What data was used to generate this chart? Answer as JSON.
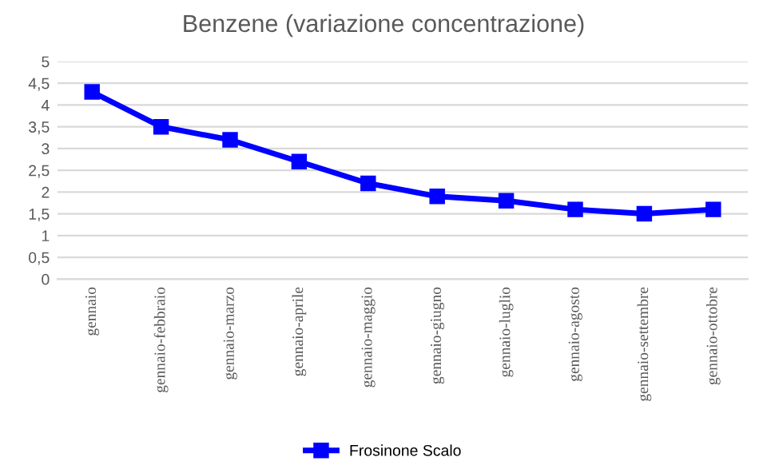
{
  "chart_data": {
    "type": "line",
    "title": "Benzene (variazione concentrazione)",
    "categories": [
      "gennaio",
      "gennaio-febbraio",
      "gennaio-marzo",
      "gennaio-aprile",
      "gennaio-maggio",
      "gennaio-giugno",
      "gennaio-luglio",
      "gennaio-agosto",
      "gennaio-settembre",
      "gennaio-ottobre"
    ],
    "series": [
      {
        "name": "Frosinone Scalo",
        "color": "#0000ff",
        "values": [
          4.3,
          3.5,
          3.2,
          2.7,
          2.2,
          1.9,
          1.8,
          1.6,
          1.5,
          1.6
        ]
      }
    ],
    "ylim": [
      0,
      5
    ],
    "yticks": [
      0,
      {
        "value": 0.5,
        "label": "0,5"
      },
      1,
      {
        "value": 1.5,
        "label": "1,5"
      },
      2,
      {
        "value": 2.5,
        "label": "2,5"
      },
      3,
      {
        "value": 3.5,
        "label": "3,5"
      },
      4,
      {
        "value": 4.5,
        "label": "4,5"
      },
      5
    ],
    "grid": "y",
    "legend": "bottom",
    "marker": "square",
    "line_style": "solid"
  }
}
